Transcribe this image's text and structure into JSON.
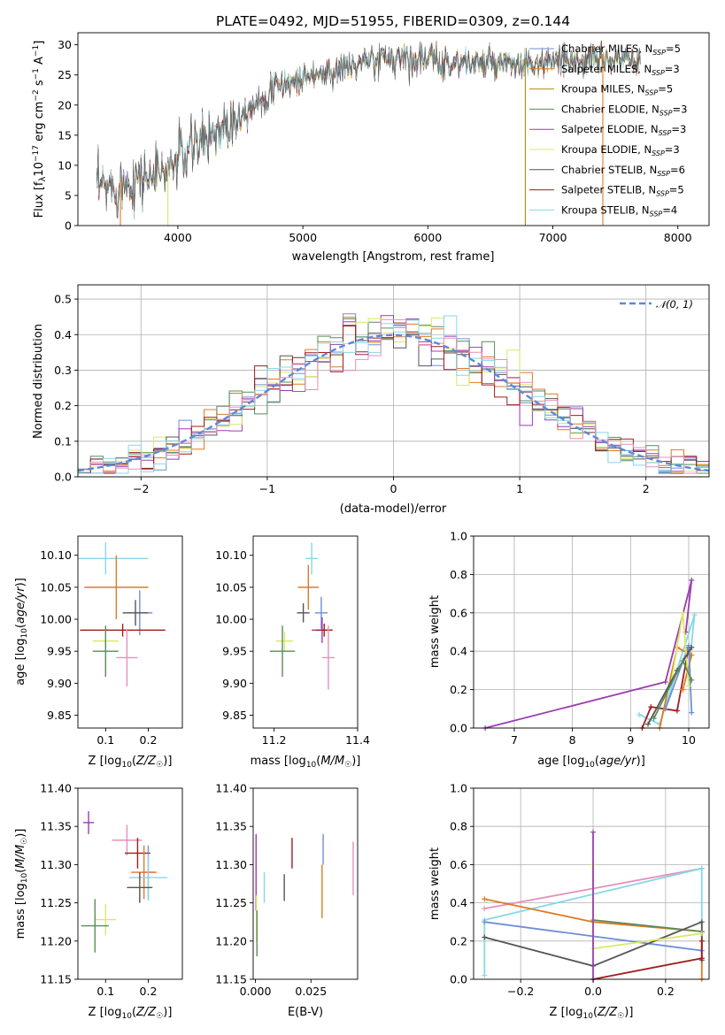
{
  "title": "PLATE=0492, MJD=51955, FIBERID=0309, z=0.144",
  "colors": [
    "#6d8fd8",
    "#e07a22",
    "#b88a12",
    "#5a8c5a",
    "#9b3cb0",
    "#d9e86a",
    "#555555",
    "#a01c1c",
    "#86d8e6",
    "#e690b8"
  ],
  "chart_data": [
    {
      "type": "line",
      "name": "spectrum",
      "xlabel": "wavelength [Angstrom, rest frame]",
      "ylabel": "Flux [f_λ 10^-17 erg cm^-2 s^-1 A^-1]",
      "xlim": [
        3200,
        8250
      ],
      "ylim": [
        0,
        32
      ],
      "xticks": [
        4000,
        5000,
        6000,
        7000,
        8000
      ],
      "yticks": [
        0,
        5,
        10,
        15,
        20,
        25,
        30
      ],
      "legend": "top-right",
      "series": [
        {
          "name": "Chabrier MILES, N_SSP=5"
        },
        {
          "name": "Salpeter MILES, N_SSP=3"
        },
        {
          "name": "Kroupa MILES, N_SSP=5"
        },
        {
          "name": "Chabrier ELODIE, N_SSP=3"
        },
        {
          "name": "Salpeter ELODIE, N_SSP=3"
        },
        {
          "name": "Kroupa ELODIE, N_SSP=3"
        },
        {
          "name": "Chabrier STELIB, N_SSP=6"
        },
        {
          "name": "Salpeter STELIB, N_SSP=5"
        },
        {
          "name": "Kroupa STELIB, N_SSP=4"
        }
      ],
      "continuum_x": [
        3350,
        3500,
        3700,
        3900,
        4000,
        4200,
        4400,
        4600,
        4800,
        5000,
        5200,
        5400,
        5600,
        5800,
        6000,
        6200,
        6400,
        6600,
        6800,
        7000,
        7200
      ],
      "continuum_y": [
        6,
        6.5,
        8,
        9,
        11,
        14,
        17,
        20,
        23,
        24.5,
        25.5,
        26.5,
        27.5,
        28,
        27.5,
        27,
        27,
        26.5,
        26.5,
        27,
        27.5
      ],
      "dropouts": [
        3540,
        3920,
        6780,
        7400
      ]
    },
    {
      "type": "histogram",
      "name": "residuals",
      "xlabel": "(data-model)/error",
      "ylabel": "Normed distribution",
      "xlim": [
        -2.5,
        2.5
      ],
      "ylim": [
        0,
        0.54
      ],
      "xticks": [
        -2,
        -1,
        0,
        1,
        2
      ],
      "yticks": [
        0.0,
        0.1,
        0.2,
        0.3,
        0.4,
        0.5
      ],
      "legend_label": "𝒩(0, 1)",
      "legend": "top-right",
      "bin_width": 0.1
    },
    {
      "type": "scatter",
      "name": "age-vs-Z",
      "xlabel": "Z [log10(Z/Z☉)]",
      "ylabel": "age [log10(age/yr)]",
      "xlim": [
        0.035,
        0.28
      ],
      "ylim": [
        9.83,
        10.13
      ],
      "xticks": [
        0.1,
        0.2
      ],
      "yticks": [
        9.85,
        9.9,
        9.95,
        10.0,
        10.05,
        10.1
      ],
      "points": [
        {
          "x": 0.1,
          "y": 10.095,
          "xerr": 0.2,
          "yerr": 0.05,
          "c": 8
        },
        {
          "x": 0.125,
          "y": 10.05,
          "xerr": 0.15,
          "yerr": 0.1,
          "c": 1
        },
        {
          "x": 0.18,
          "y": 10.01,
          "xerr": 0.06,
          "yerr": 0.07,
          "c": 0
        },
        {
          "x": 0.17,
          "y": 10.01,
          "xerr": 0.06,
          "yerr": 0.04,
          "c": 6
        },
        {
          "x": 0.14,
          "y": 9.983,
          "xerr": 0.2,
          "yerr": 0.02,
          "c": 7
        },
        {
          "x": 0.1,
          "y": 9.966,
          "xerr": 0.06,
          "yerr": 0.04,
          "c": 5
        },
        {
          "x": 0.1,
          "y": 9.95,
          "xerr": 0.06,
          "yerr": 0.08,
          "c": 3
        },
        {
          "x": 0.15,
          "y": 9.94,
          "xerr": 0.05,
          "yerr": 0.09,
          "c": 9
        }
      ]
    },
    {
      "type": "scatter",
      "name": "age-vs-mass",
      "xlabel": "mass [log10(M/M☉)]",
      "ylabel": "",
      "xlim": [
        11.15,
        11.4
      ],
      "ylim": [
        9.83,
        10.13
      ],
      "xticks": [
        11.2,
        11.4
      ],
      "yticks": [
        9.85,
        9.9,
        9.95,
        10.0,
        10.05,
        10.1
      ],
      "points": [
        {
          "x": 11.29,
          "y": 10.095,
          "xerr": 0.03,
          "yerr": 0.05,
          "c": 8
        },
        {
          "x": 11.282,
          "y": 10.05,
          "xerr": 0.05,
          "yerr": 0.07,
          "c": 1
        },
        {
          "x": 11.313,
          "y": 10.01,
          "xerr": 0.03,
          "yerr": 0.05,
          "c": 0
        },
        {
          "x": 11.27,
          "y": 10.01,
          "xerr": 0.03,
          "yerr": 0.03,
          "c": 6
        },
        {
          "x": 11.315,
          "y": 9.983,
          "xerr": 0.05,
          "yerr": 0.04,
          "c": 4
        },
        {
          "x": 11.32,
          "y": 9.983,
          "xerr": 0.04,
          "yerr": 0.02,
          "c": 7
        },
        {
          "x": 11.225,
          "y": 9.966,
          "xerr": 0.04,
          "yerr": 0.03,
          "c": 5
        },
        {
          "x": 11.22,
          "y": 9.95,
          "xerr": 0.06,
          "yerr": 0.08,
          "c": 3
        },
        {
          "x": 11.33,
          "y": 9.94,
          "xerr": 0.03,
          "yerr": 0.1,
          "c": 9
        }
      ]
    },
    {
      "type": "line",
      "name": "mass-weight-vs-age",
      "xlabel": "age [log10(age/yr)]",
      "ylabel": "mass weight",
      "xlim": [
        6.3,
        10.35
      ],
      "ylim": [
        0,
        1.0
      ],
      "xticks": [
        7,
        8,
        9,
        10
      ],
      "yticks": [
        0.0,
        0.2,
        0.4,
        0.6,
        0.8,
        1.0
      ],
      "series": [
        {
          "c": 4,
          "x": [
            6.5,
            9.6,
            10.05,
            9.95
          ],
          "y": [
            0.0,
            0.24,
            0.77,
            0.5
          ]
        },
        {
          "c": 8,
          "x": [
            9.15,
            9.5,
            10.1,
            10.0
          ],
          "y": [
            0.07,
            0.02,
            0.59,
            0.3
          ]
        },
        {
          "c": 7,
          "x": [
            9.2,
            9.35,
            9.8,
            10.0
          ],
          "y": [
            0.0,
            0.11,
            0.09,
            0.42
          ]
        },
        {
          "c": 1,
          "x": [
            9.5,
            9.8,
            10.05,
            9.9
          ],
          "y": [
            0.0,
            0.42,
            0.38,
            0.2
          ]
        },
        {
          "c": 0,
          "x": [
            9.6,
            10.0,
            10.05
          ],
          "y": [
            0.1,
            0.43,
            0.08
          ]
        },
        {
          "c": 5,
          "x": [
            9.7,
            9.9,
            10.0
          ],
          "y": [
            0.24,
            0.6,
            0.22
          ]
        },
        {
          "c": 6,
          "x": [
            9.3,
            9.8,
            10.05
          ],
          "y": [
            0.02,
            0.3,
            0.42
          ]
        },
        {
          "c": 3,
          "x": [
            9.4,
            9.9,
            10.05
          ],
          "y": [
            0.05,
            0.35,
            0.25
          ]
        }
      ]
    },
    {
      "type": "scatter",
      "name": "mass-vs-Z",
      "xlabel": "Z [log10(Z/Z☉)]",
      "ylabel": "mass [log10(M/M☉)]",
      "xlim": [
        0.035,
        0.28
      ],
      "ylim": [
        11.15,
        11.4
      ],
      "xticks": [
        0.1,
        0.2
      ],
      "yticks": [
        11.15,
        11.2,
        11.25,
        11.3,
        11.35,
        11.4
      ],
      "points": [
        {
          "x": 0.06,
          "y": 11.355,
          "xerr": 0.025,
          "yerr": 0.03,
          "c": 4
        },
        {
          "x": 0.15,
          "y": 11.332,
          "xerr": 0.07,
          "yerr": 0.04,
          "c": 9
        },
        {
          "x": 0.175,
          "y": 11.315,
          "xerr": 0.06,
          "yerr": 0.04,
          "c": 7
        },
        {
          "x": 0.2,
          "y": 11.29,
          "xerr": 0.03,
          "yerr": 0.07,
          "c": 0
        },
        {
          "x": 0.19,
          "y": 11.29,
          "xerr": 0.06,
          "yerr": 0.07,
          "c": 1
        },
        {
          "x": 0.2,
          "y": 11.283,
          "xerr": 0.09,
          "yerr": 0.06,
          "c": 8
        },
        {
          "x": 0.18,
          "y": 11.27,
          "xerr": 0.06,
          "yerr": 0.04,
          "c": 6
        },
        {
          "x": 0.1,
          "y": 11.228,
          "xerr": 0.05,
          "yerr": 0.04,
          "c": 5
        },
        {
          "x": 0.075,
          "y": 11.22,
          "xerr": 0.065,
          "yerr": 0.07,
          "c": 3
        }
      ]
    },
    {
      "type": "scatter",
      "name": "mass-vs-EBV",
      "xlabel": "E(B-V)",
      "ylabel": "",
      "xlim": [
        -0.001,
        0.046
      ],
      "ylim": [
        11.15,
        11.4
      ],
      "xticks": [
        0.0,
        0.025
      ],
      "yticks": [
        11.15,
        11.2,
        11.25,
        11.3,
        11.35,
        11.4
      ],
      "points": [
        {
          "x": 0.0003,
          "y": 11.29,
          "xerr": 0,
          "yerr": 0.1,
          "c": 4
        },
        {
          "x": 0.0005,
          "y": 11.23,
          "xerr": 0,
          "yerr": 0.06,
          "c": 5
        },
        {
          "x": 0.0007,
          "y": 11.21,
          "xerr": 0,
          "yerr": 0.06,
          "c": 3
        },
        {
          "x": 0.004,
          "y": 11.27,
          "xerr": 0,
          "yerr": 0.04,
          "c": 8
        },
        {
          "x": 0.013,
          "y": 11.27,
          "xerr": 0,
          "yerr": 0.035,
          "c": 6
        },
        {
          "x": 0.0165,
          "y": 11.315,
          "xerr": 0,
          "yerr": 0.04,
          "c": 7
        },
        {
          "x": 0.0305,
          "y": 11.32,
          "xerr": 0,
          "yerr": 0.04,
          "c": 0
        },
        {
          "x": 0.03,
          "y": 11.265,
          "xerr": 0,
          "yerr": 0.07,
          "c": 1
        },
        {
          "x": 0.044,
          "y": 11.295,
          "xerr": 0,
          "yerr": 0.07,
          "c": 9
        }
      ]
    },
    {
      "type": "line",
      "name": "mass-weight-vs-Z",
      "xlabel": "Z [log10(Z/Z☉)]",
      "ylabel": "mass weight",
      "xlim": [
        -0.33,
        0.32
      ],
      "ylim": [
        0,
        1.0
      ],
      "xticks": [
        -0.2,
        0.0,
        0.2
      ],
      "yticks": [
        0.0,
        0.2,
        0.4,
        0.6,
        0.8,
        1.0
      ],
      "series": [
        {
          "c": 9,
          "x": [
            -0.3,
            0.3
          ],
          "y": [
            0.37,
            0.58
          ]
        },
        {
          "c": 8,
          "x": [
            -0.3,
            -0.3,
            0.3,
            0.3
          ],
          "y": [
            0.02,
            0.31,
            0.58,
            0.2
          ]
        },
        {
          "c": 1,
          "x": [
            -0.3,
            0.0,
            0.3,
            0.3
          ],
          "y": [
            0.42,
            0.3,
            0.25,
            0.0
          ]
        },
        {
          "c": 0,
          "x": [
            -0.3,
            0.3
          ],
          "y": [
            0.3,
            0.15
          ]
        },
        {
          "c": 3,
          "x": [
            0.0,
            0.3
          ],
          "y": [
            0.31,
            0.25
          ]
        },
        {
          "c": 6,
          "x": [
            -0.3,
            0.0,
            0.3,
            0.3
          ],
          "y": [
            0.22,
            0.07,
            0.3,
            0.1
          ]
        },
        {
          "c": 7,
          "x": [
            0.0,
            0.3,
            0.3
          ],
          "y": [
            0.0,
            0.11,
            0.2
          ]
        },
        {
          "c": 5,
          "x": [
            0.0,
            0.0,
            0.3
          ],
          "y": [
            0.6,
            0.16,
            0.24
          ]
        },
        {
          "c": 4,
          "x": [
            0.0,
            0.0
          ],
          "y": [
            0.77,
            0.0
          ]
        }
      ]
    }
  ]
}
